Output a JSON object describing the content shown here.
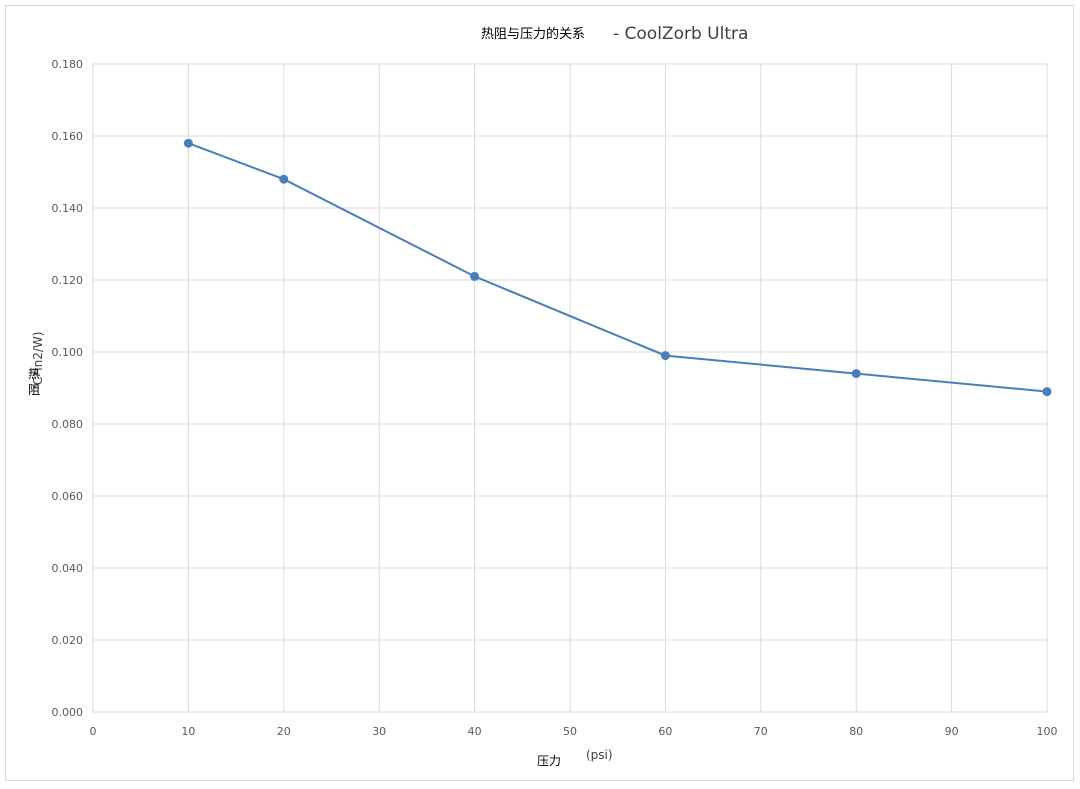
{
  "chart_data": {
    "type": "line",
    "title": "热阻与压力的关系",
    "subtitle": "- CoolZorb Ultra",
    "xlabel": "压力",
    "xlabel_unit": "(psi)",
    "ylabel_unit": "'C*in2/W)",
    "ylabel": "热阻",
    "xlim": [
      0,
      100
    ],
    "ylim": [
      0,
      0.18
    ],
    "x_ticks": [
      "0",
      "10",
      "20",
      "30",
      "40",
      "50",
      "60",
      "70",
      "80",
      "90",
      "100"
    ],
    "y_ticks": [
      "0.000",
      "0.020",
      "0.040",
      "0.060",
      "0.080",
      "0.100",
      "0.120",
      "0.140",
      "0.160",
      "0.180"
    ],
    "grid": true,
    "series": [
      {
        "x": [
          10,
          20,
          40,
          60,
          80,
          100
        ],
        "y": [
          0.158,
          0.148,
          0.121,
          0.099,
          0.094,
          0.089
        ],
        "color": "#4a7ebb"
      }
    ]
  }
}
